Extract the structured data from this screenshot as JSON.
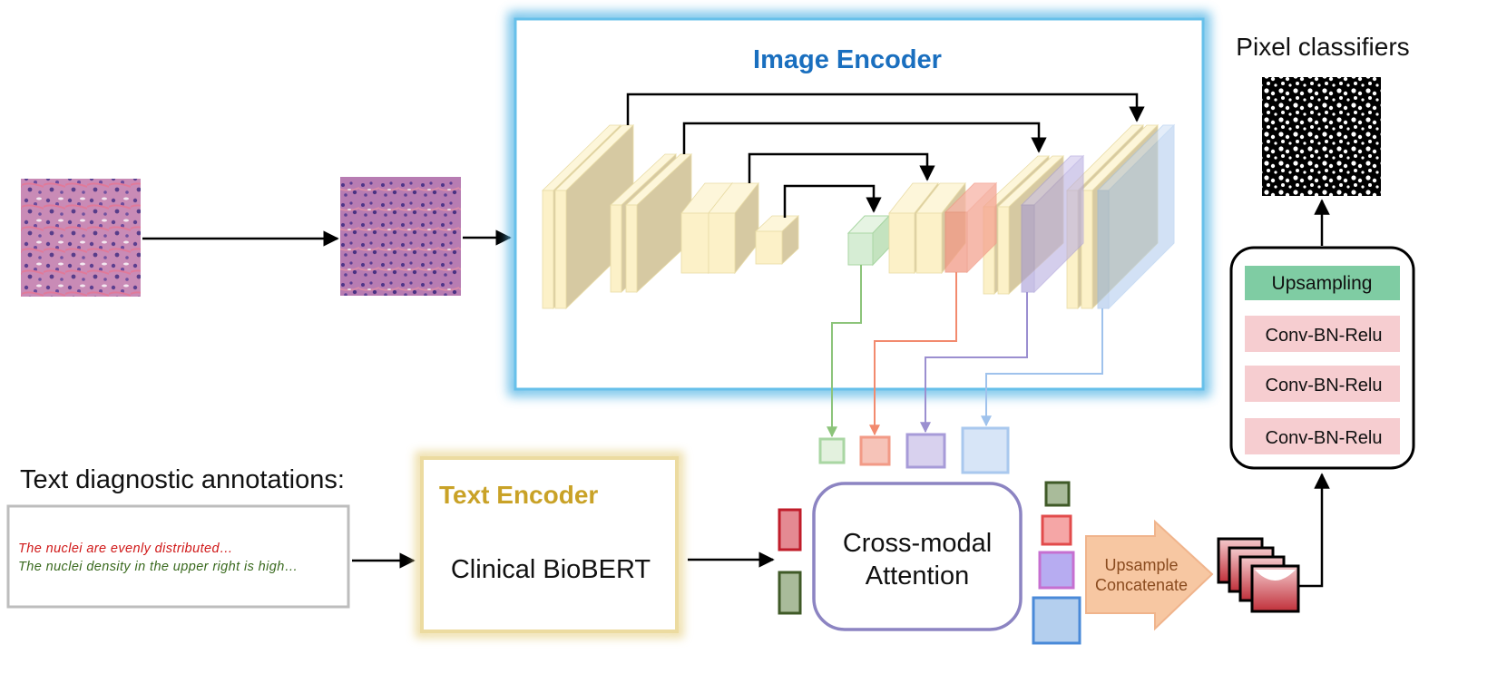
{
  "image_encoder": {
    "title": "Image Encoder"
  },
  "text_encoder": {
    "title": "Text Encoder",
    "model": "Clinical BioBERT"
  },
  "pixel_classifiers": {
    "title": "Pixel classifiers",
    "layers": [
      "Upsampling",
      "Conv-BN-Relu",
      "Conv-BN-Relu",
      "Conv-BN-Relu"
    ]
  },
  "annotations": {
    "title": "Text diagnostic annotations:",
    "lines": [
      "The nuclei are evenly distributed…",
      "The nuclei density in the upper right is high…"
    ]
  },
  "cross_modal": {
    "line1": "Cross-modal",
    "line2": "Attention"
  },
  "upsample_concat": {
    "line1": "Upsample",
    "line2": "Concatenate"
  },
  "colors": {
    "encoder_glow": "#5bb8e6",
    "image_encoder_title": "#1a6fbf",
    "text_encoder_title": "#c9a227",
    "text_encoder_border": "#ecdba0",
    "upsampling_fill": "#7fcca3",
    "conv_fill": "#f6cdd0",
    "feature_block": "#fcf1c8",
    "bottleneck_block": "#d6edd4",
    "level_red": "#f29a86",
    "level_purple": "#b3a8dc",
    "level_blue": "#b4cfee",
    "annotation_red": "#d01818",
    "annotation_green": "#3a6a1f",
    "arrow_shape": "#f7c7a2",
    "arrow_text": "#8a4b1f"
  }
}
